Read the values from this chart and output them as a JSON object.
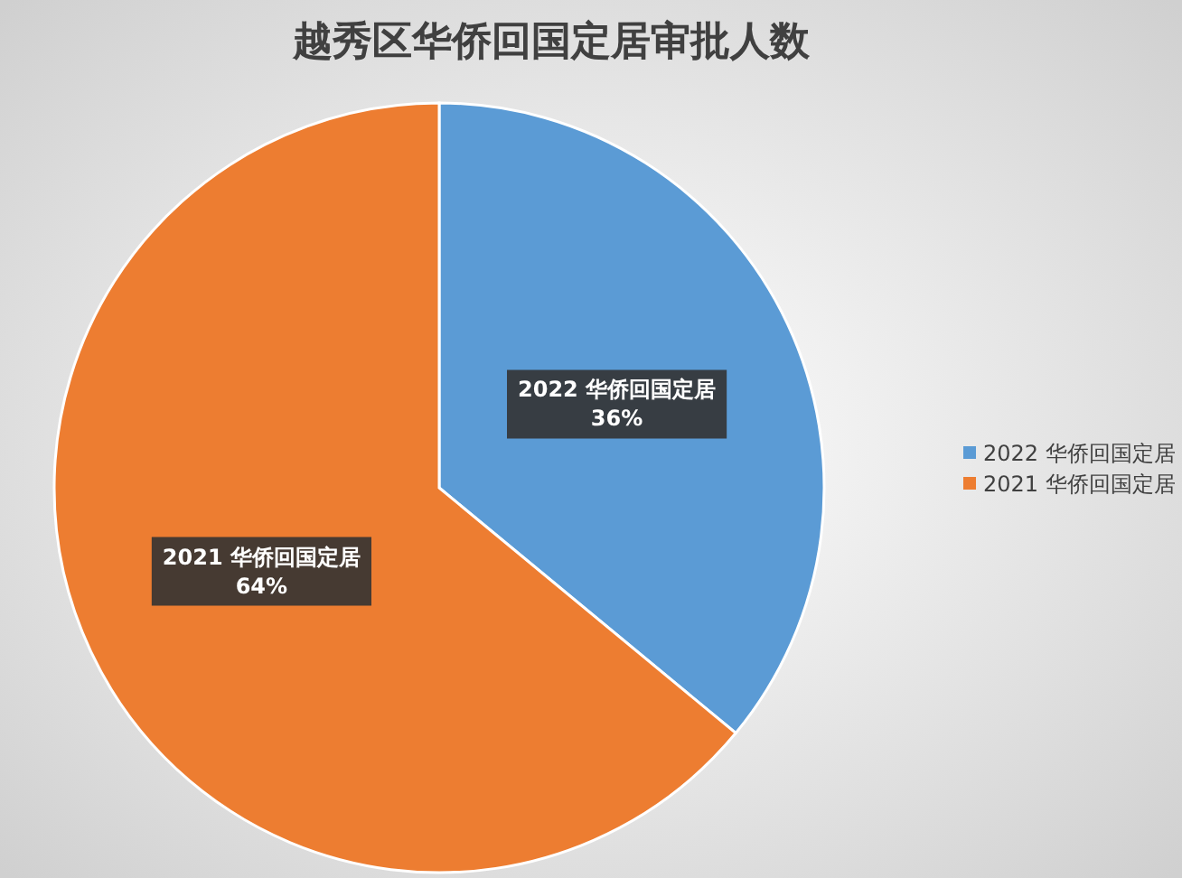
{
  "chart_data": {
    "type": "pie",
    "title": "越秀区华侨回国定居审批人数",
    "categories": [
      "2022 华侨回国定居",
      "2021 华侨回国定居"
    ],
    "values": [
      36,
      64
    ],
    "colors": [
      "#5b9bd5",
      "#ed7d31"
    ],
    "value_labels": [
      "36%",
      "64%"
    ],
    "legend": "right"
  }
}
